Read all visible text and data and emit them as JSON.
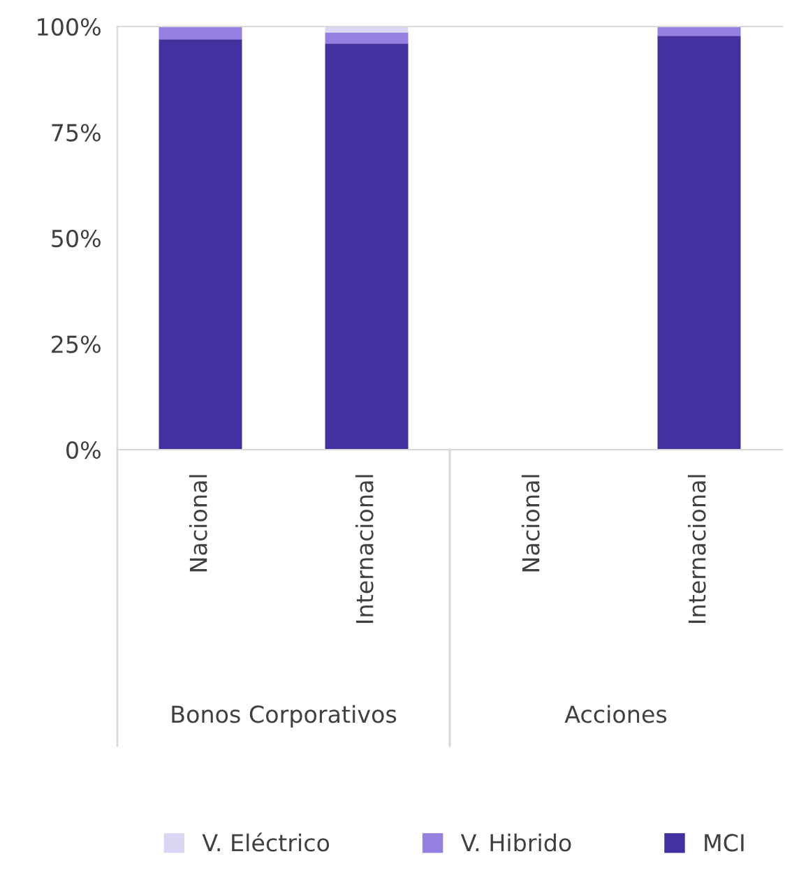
{
  "chart_data": {
    "type": "bar",
    "stacked": true,
    "categories": [
      "Nacional",
      "Internacional",
      "Nacional",
      "Internacional"
    ],
    "series": [
      {
        "name": "MCI",
        "color": "#4530a0",
        "values": [
          97,
          96,
          null,
          97.8
        ]
      },
      {
        "name": "V. Hibrido",
        "color": "#9580e0",
        "values": [
          3,
          2.6,
          null,
          2.2
        ]
      },
      {
        "name": "V. Eléctrico",
        "color": "#dcd6f5",
        "values": [
          null,
          1.4,
          null,
          null
        ]
      }
    ],
    "ylim": [
      0,
      100
    ],
    "yticks": [
      {
        "value": 0,
        "label": "0%"
      },
      {
        "value": 25,
        "label": "25%"
      },
      {
        "value": 50,
        "label": "50%"
      },
      {
        "value": 75,
        "label": "75%"
      },
      {
        "value": 100,
        "label": "100%"
      }
    ],
    "annotations": [
      "Bonos Corporativos",
      "Acciones"
    ],
    "legend": "bottom",
    "grid": false
  }
}
